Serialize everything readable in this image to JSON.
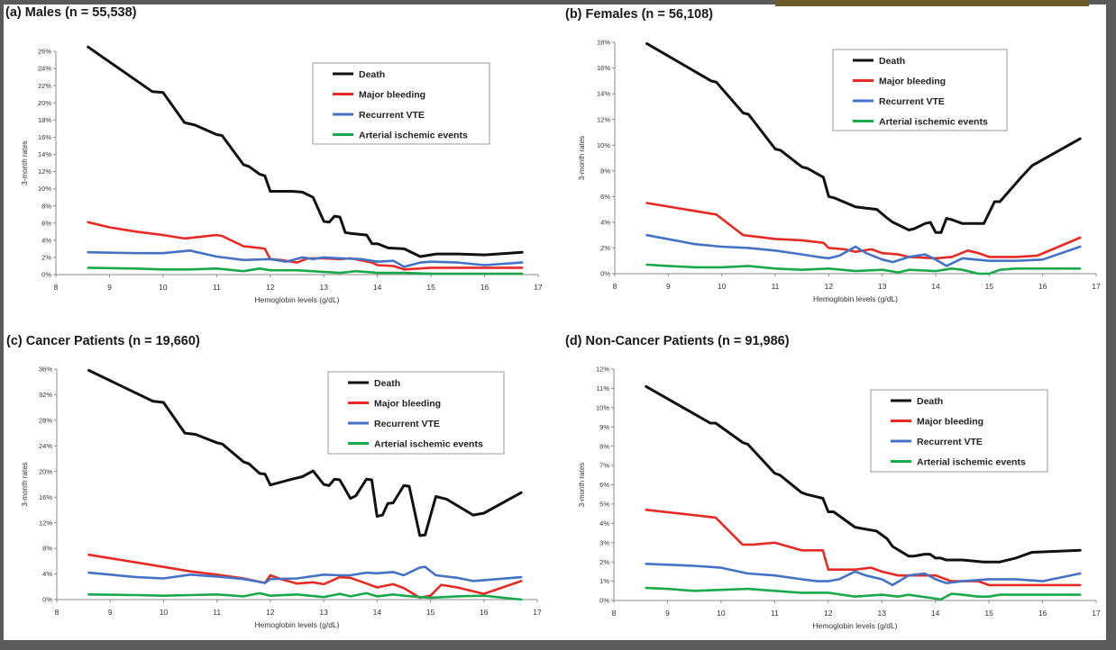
{
  "colors": {
    "Death": "#111111",
    "Major bleeding": "#e52b24",
    "Recurrent VTE": "#4472c4",
    "Arterial ischemic events": "#19a84a"
  },
  "chart_data": [
    {
      "type": "line",
      "title": "(a) Males (n = 55,538)",
      "xlabel": "Hemoglobin levels (g/dL)",
      "ylabel": "3-month rates",
      "xlim": [
        8,
        17
      ],
      "ylim": [
        0,
        26
      ],
      "xticks": [
        "8",
        "9",
        "10",
        "11",
        "12",
        "13",
        "14",
        "15",
        "16",
        "17"
      ],
      "yticks": [
        "0%",
        "2%",
        "4%",
        "6%",
        "8%",
        "10%",
        "12%",
        "14%",
        "16%",
        "18%",
        "20%",
        "22%",
        "24%",
        "26%"
      ],
      "legend_position": "top-right",
      "series": [
        {
          "name": "Death",
          "x": [
            8.6,
            9.8,
            10.0,
            10.4,
            10.6,
            11.0,
            11.1,
            11.5,
            11.6,
            11.8,
            11.9,
            12.0,
            12.4,
            12.6,
            12.8,
            13.0,
            13.1,
            13.2,
            13.3,
            13.4,
            13.5,
            13.8,
            13.9,
            14.0,
            14.2,
            14.5,
            14.8,
            15.1,
            15.5,
            16.0,
            16.7
          ],
          "y": [
            26.5,
            21.3,
            21.2,
            17.7,
            17.4,
            16.3,
            16.2,
            12.8,
            12.6,
            11.7,
            11.5,
            9.7,
            9.7,
            9.6,
            9.0,
            6.2,
            6.1,
            6.8,
            6.7,
            4.9,
            4.8,
            4.6,
            3.6,
            3.6,
            3.1,
            3.0,
            2.1,
            2.4,
            2.4,
            2.3,
            2.6
          ]
        },
        {
          "name": "Major bleeding",
          "x": [
            8.6,
            9.0,
            9.5,
            10.0,
            10.4,
            11.0,
            11.1,
            11.5,
            11.8,
            11.9,
            12.0,
            12.2,
            12.5,
            12.7,
            13.0,
            13.3,
            13.5,
            13.9,
            14.0,
            14.3,
            14.5,
            15.0,
            15.5,
            16.0,
            16.7
          ],
          "y": [
            6.1,
            5.5,
            5.0,
            4.6,
            4.2,
            4.6,
            4.5,
            3.3,
            3.1,
            3.0,
            1.8,
            1.7,
            1.4,
            1.9,
            1.9,
            1.8,
            1.9,
            1.4,
            1.1,
            1.0,
            0.6,
            0.8,
            0.8,
            0.8,
            0.8
          ]
        },
        {
          "name": "Recurrent VTE",
          "x": [
            8.6,
            9.5,
            10.0,
            10.5,
            11.0,
            11.5,
            12.0,
            12.3,
            12.6,
            12.8,
            13.0,
            13.3,
            13.7,
            14.0,
            14.3,
            14.5,
            14.8,
            15.0,
            15.5,
            16.0,
            16.7
          ],
          "y": [
            2.6,
            2.5,
            2.5,
            2.8,
            2.1,
            1.7,
            1.8,
            1.5,
            2.0,
            1.8,
            2.0,
            1.9,
            1.8,
            1.5,
            1.6,
            0.9,
            1.4,
            1.5,
            1.4,
            1.1,
            1.4
          ]
        },
        {
          "name": "Arterial ischemic events",
          "x": [
            8.6,
            9.5,
            10.0,
            10.5,
            11.0,
            11.5,
            11.8,
            12.0,
            12.5,
            13.0,
            13.3,
            13.6,
            14.0,
            14.5,
            15.0,
            15.5,
            16.0,
            16.7
          ],
          "y": [
            0.8,
            0.7,
            0.6,
            0.6,
            0.7,
            0.4,
            0.7,
            0.5,
            0.5,
            0.3,
            0.2,
            0.4,
            0.2,
            0.2,
            0.1,
            0.1,
            0.1,
            0.1
          ]
        }
      ]
    },
    {
      "type": "line",
      "title": "(b) Females (n = 56,108)",
      "xlabel": "Hemoglobin levels (g/dL)",
      "ylabel": "3-month rates",
      "xlim": [
        8,
        17
      ],
      "ylim": [
        0,
        18
      ],
      "xticks": [
        "8",
        "9",
        "10",
        "11",
        "12",
        "13",
        "14",
        "15",
        "16",
        "17"
      ],
      "yticks": [
        "0%",
        "2%",
        "4%",
        "6%",
        "8%",
        "10%",
        "12%",
        "14%",
        "16%",
        "18%"
      ],
      "legend_position": "top-right",
      "series": [
        {
          "name": "Death",
          "x": [
            8.6,
            9.8,
            9.9,
            10.4,
            10.5,
            11.0,
            11.1,
            11.5,
            11.6,
            11.9,
            12.0,
            12.1,
            12.5,
            12.7,
            12.9,
            13.1,
            13.2,
            13.5,
            13.6,
            13.8,
            13.9,
            14.0,
            14.1,
            14.2,
            14.3,
            14.5,
            14.9,
            15.1,
            15.2,
            15.6,
            15.8,
            16.7
          ],
          "y": [
            17.9,
            15.0,
            14.9,
            12.5,
            12.4,
            9.7,
            9.6,
            8.3,
            8.2,
            7.5,
            6.0,
            5.9,
            5.2,
            5.1,
            5.0,
            4.3,
            4.0,
            3.4,
            3.5,
            3.9,
            4.0,
            3.2,
            3.2,
            4.3,
            4.2,
            3.9,
            3.9,
            5.6,
            5.6,
            7.5,
            8.4,
            10.5
          ]
        },
        {
          "name": "Major bleeding",
          "x": [
            8.6,
            9.9,
            10.4,
            10.6,
            11.0,
            11.5,
            11.9,
            12.0,
            12.3,
            12.5,
            12.8,
            13.0,
            13.3,
            13.5,
            14.0,
            14.3,
            14.6,
            14.8,
            15.0,
            15.5,
            15.9,
            16.7
          ],
          "y": [
            5.5,
            4.6,
            3.0,
            2.9,
            2.7,
            2.6,
            2.4,
            2.0,
            1.9,
            1.7,
            1.9,
            1.6,
            1.5,
            1.3,
            1.2,
            1.3,
            1.8,
            1.6,
            1.3,
            1.3,
            1.4,
            2.8
          ]
        },
        {
          "name": "Recurrent VTE",
          "x": [
            8.6,
            9.5,
            10.0,
            10.5,
            11.0,
            11.5,
            11.8,
            12.0,
            12.2,
            12.5,
            12.7,
            13.0,
            13.2,
            13.5,
            13.8,
            14.0,
            14.2,
            14.5,
            15.0,
            15.5,
            16.0,
            16.7
          ],
          "y": [
            3.0,
            2.3,
            2.1,
            2.0,
            1.8,
            1.5,
            1.3,
            1.2,
            1.4,
            2.1,
            1.6,
            1.1,
            0.9,
            1.3,
            1.5,
            1.1,
            0.6,
            1.2,
            1.0,
            1.0,
            1.1,
            2.1
          ]
        },
        {
          "name": "Arterial ischemic events",
          "x": [
            8.6,
            9.0,
            9.5,
            10.0,
            10.5,
            11.0,
            11.5,
            12.0,
            12.5,
            13.0,
            13.3,
            13.5,
            14.0,
            14.3,
            14.5,
            14.8,
            15.0,
            15.2,
            15.5,
            16.0,
            16.7
          ],
          "y": [
            0.7,
            0.6,
            0.5,
            0.5,
            0.6,
            0.4,
            0.3,
            0.4,
            0.2,
            0.3,
            0.1,
            0.3,
            0.2,
            0.4,
            0.3,
            0.0,
            0.0,
            0.3,
            0.4,
            0.4,
            0.4
          ]
        }
      ]
    },
    {
      "type": "line",
      "title": "(c) Cancer Patients (n = 19,660)",
      "xlabel": "Hemoglobin levels (g/dL)",
      "ylabel": "3-month rates",
      "xlim": [
        8,
        17
      ],
      "ylim": [
        0,
        36
      ],
      "xticks": [
        "8",
        "9",
        "10",
        "11",
        "12",
        "13",
        "14",
        "15",
        "16",
        "17"
      ],
      "yticks": [
        "0%",
        "4%",
        "8%",
        "12%",
        "16%",
        "20%",
        "24%",
        "28%",
        "32%",
        "36%"
      ],
      "legend_position": "top-right",
      "series": [
        {
          "name": "Death",
          "x": [
            8.6,
            9.8,
            10.0,
            10.4,
            10.6,
            11.0,
            11.1,
            11.5,
            11.6,
            11.8,
            11.9,
            12.0,
            12.4,
            12.6,
            12.8,
            13.0,
            13.1,
            13.2,
            13.3,
            13.5,
            13.6,
            13.8,
            13.9,
            14.0,
            14.1,
            14.2,
            14.3,
            14.5,
            14.6,
            14.8,
            14.9,
            15.1,
            15.3,
            15.8,
            16.0,
            16.7
          ],
          "y": [
            35.8,
            31.0,
            30.8,
            26.0,
            25.8,
            24.5,
            24.3,
            21.5,
            21.2,
            19.7,
            19.6,
            17.9,
            18.8,
            19.2,
            20.1,
            18.0,
            17.8,
            18.8,
            18.7,
            15.8,
            16.2,
            18.8,
            18.7,
            13.0,
            13.2,
            15.0,
            15.1,
            17.8,
            17.7,
            10.0,
            10.1,
            16.1,
            15.7,
            13.2,
            13.5,
            16.7
          ]
        },
        {
          "name": "Major bleeding",
          "x": [
            8.6,
            10.0,
            10.5,
            11.0,
            11.5,
            11.9,
            12.0,
            12.2,
            12.5,
            12.8,
            13.0,
            13.3,
            13.5,
            13.8,
            14.0,
            14.3,
            14.5,
            14.8,
            15.0,
            15.2,
            15.5,
            16.0,
            16.7
          ],
          "y": [
            7.0,
            5.1,
            4.4,
            3.9,
            3.3,
            2.6,
            3.8,
            3.2,
            2.5,
            2.7,
            2.4,
            3.5,
            3.4,
            2.5,
            1.9,
            2.4,
            1.8,
            0.3,
            0.6,
            2.3,
            1.9,
            0.9,
            2.9
          ]
        },
        {
          "name": "Recurrent VTE",
          "x": [
            8.6,
            9.5,
            10.0,
            10.5,
            11.0,
            11.5,
            11.9,
            12.0,
            12.5,
            13.0,
            13.3,
            13.5,
            13.8,
            14.0,
            14.3,
            14.5,
            14.8,
            14.9,
            15.1,
            15.5,
            15.8,
            16.7
          ],
          "y": [
            4.2,
            3.5,
            3.3,
            3.9,
            3.6,
            3.2,
            2.6,
            3.2,
            3.3,
            3.9,
            3.8,
            3.8,
            4.2,
            4.1,
            4.3,
            3.8,
            5.0,
            5.1,
            3.8,
            3.4,
            2.9,
            3.5
          ]
        },
        {
          "name": "Arterial ischemic events",
          "x": [
            8.6,
            9.5,
            10.0,
            10.5,
            11.0,
            11.5,
            11.8,
            12.0,
            12.5,
            13.0,
            13.3,
            13.5,
            13.8,
            14.0,
            14.3,
            14.5,
            14.8,
            15.0,
            15.5,
            16.0,
            16.7
          ],
          "y": [
            0.8,
            0.7,
            0.6,
            0.7,
            0.8,
            0.5,
            1.0,
            0.6,
            0.8,
            0.4,
            0.9,
            0.5,
            1.0,
            0.5,
            0.8,
            0.6,
            0.4,
            0.3,
            0.5,
            0.6,
            0.0
          ]
        }
      ]
    },
    {
      "type": "line",
      "title": "(d) Non-Cancer Patients (n = 91,986)",
      "xlabel": "Hemoglobin levels (g/dL)",
      "ylabel": "3-month rates",
      "xlim": [
        8,
        17
      ],
      "ylim": [
        0,
        12
      ],
      "xticks": [
        "8",
        "9",
        "10",
        "11",
        "12",
        "13",
        "14",
        "15",
        "16",
        "17"
      ],
      "yticks": [
        "0%",
        "1%",
        "2%",
        "3%",
        "4%",
        "5%",
        "6%",
        "7%",
        "8%",
        "9%",
        "10%",
        "11%",
        "12%"
      ],
      "legend_position": "top-right",
      "series": [
        {
          "name": "Death",
          "x": [
            8.6,
            9.8,
            9.9,
            10.4,
            10.5,
            11.0,
            11.1,
            11.5,
            11.6,
            11.9,
            12.0,
            12.1,
            12.5,
            12.7,
            12.9,
            13.1,
            13.2,
            13.5,
            13.6,
            13.8,
            13.9,
            14.0,
            14.1,
            14.2,
            14.5,
            14.9,
            15.0,
            15.2,
            15.5,
            15.8,
            16.7
          ],
          "y": [
            11.1,
            9.2,
            9.2,
            8.2,
            8.1,
            6.6,
            6.5,
            5.6,
            5.5,
            5.3,
            4.6,
            4.6,
            3.8,
            3.7,
            3.6,
            3.2,
            2.8,
            2.3,
            2.3,
            2.4,
            2.4,
            2.2,
            2.2,
            2.1,
            2.1,
            2.0,
            2.0,
            2.0,
            2.2,
            2.5,
            2.6
          ]
        },
        {
          "name": "Major bleeding",
          "x": [
            8.6,
            9.9,
            10.4,
            10.6,
            11.0,
            11.5,
            11.9,
            12.0,
            12.3,
            12.5,
            12.8,
            13.0,
            13.3,
            13.5,
            14.0,
            14.3,
            14.6,
            14.8,
            15.0,
            15.5,
            15.9,
            16.7
          ],
          "y": [
            4.7,
            4.3,
            2.9,
            2.9,
            3.0,
            2.6,
            2.6,
            1.6,
            1.6,
            1.6,
            1.7,
            1.5,
            1.3,
            1.3,
            1.3,
            1.0,
            1.0,
            1.0,
            0.8,
            0.8,
            0.8,
            0.8
          ]
        },
        {
          "name": "Recurrent VTE",
          "x": [
            8.6,
            9.5,
            10.0,
            10.5,
            11.0,
            11.5,
            11.8,
            12.0,
            12.2,
            12.5,
            12.7,
            13.0,
            13.2,
            13.5,
            13.8,
            14.0,
            14.2,
            14.5,
            15.0,
            15.5,
            16.0,
            16.7
          ],
          "y": [
            1.9,
            1.8,
            1.7,
            1.4,
            1.3,
            1.1,
            1.0,
            1.0,
            1.1,
            1.5,
            1.3,
            1.1,
            0.8,
            1.3,
            1.4,
            1.1,
            0.9,
            1.0,
            1.1,
            1.1,
            1.0,
            1.4
          ]
        },
        {
          "name": "Arterial ischemic events",
          "x": [
            8.6,
            9.0,
            9.5,
            10.0,
            10.5,
            11.0,
            11.5,
            12.0,
            12.5,
            13.0,
            13.3,
            13.5,
            14.0,
            14.1,
            14.3,
            14.5,
            14.8,
            15.0,
            15.2,
            15.5,
            16.0,
            16.7
          ],
          "y": [
            0.65,
            0.6,
            0.5,
            0.55,
            0.6,
            0.5,
            0.4,
            0.4,
            0.2,
            0.3,
            0.2,
            0.3,
            0.1,
            0.05,
            0.35,
            0.3,
            0.2,
            0.2,
            0.3,
            0.3,
            0.3,
            0.3
          ]
        }
      ]
    }
  ]
}
